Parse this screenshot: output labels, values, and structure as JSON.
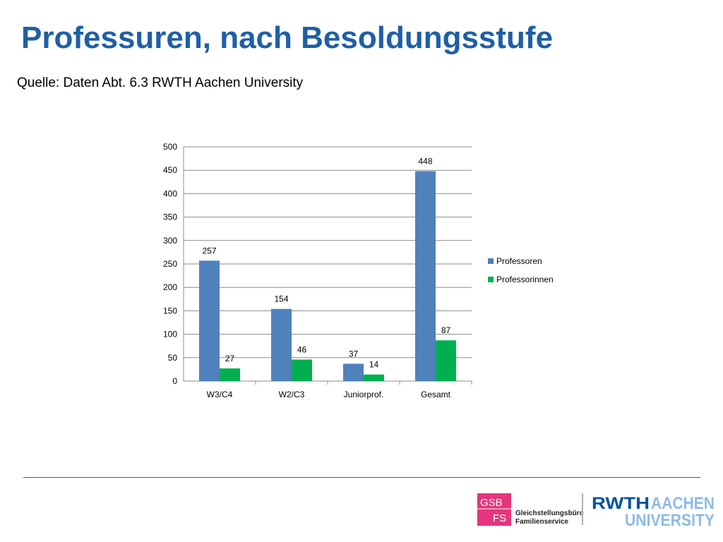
{
  "slide": {
    "title": "Professuren, nach Besoldungsstufe",
    "subtitle": "Quelle: Daten Abt. 6.3 RWTH Aachen University"
  },
  "chart_data": {
    "type": "bar",
    "categories": [
      "W3/C4",
      "W2/C3",
      "Juniorprof.",
      "Gesamt"
    ],
    "series": [
      {
        "name": "Professoren",
        "values": [
          257,
          154,
          37,
          448
        ],
        "color": "#4f81bd"
      },
      {
        "name": "Professorinnen",
        "values": [
          27,
          46,
          14,
          87
        ],
        "color": "#00b050"
      }
    ],
    "ylim": [
      0,
      500
    ],
    "yticks": [
      0,
      50,
      100,
      150,
      200,
      250,
      300,
      350,
      400,
      450,
      500
    ],
    "grid": true,
    "legend": "right",
    "data_labels": true
  },
  "footer": {
    "gsb_line1": "Gleichstellungsbüro",
    "gsb_line2": "Familienservice",
    "gsb_mark_top": "GSB",
    "gsb_mark_bottom": "FS",
    "gsb_color": "#e5357c",
    "rwth_mark": "RWTH",
    "rwth_word1": "AACHEN",
    "rwth_word2": "UNIVERSITY",
    "rwth_color": "#00549f",
    "rwth_light": "#8ebae5"
  }
}
